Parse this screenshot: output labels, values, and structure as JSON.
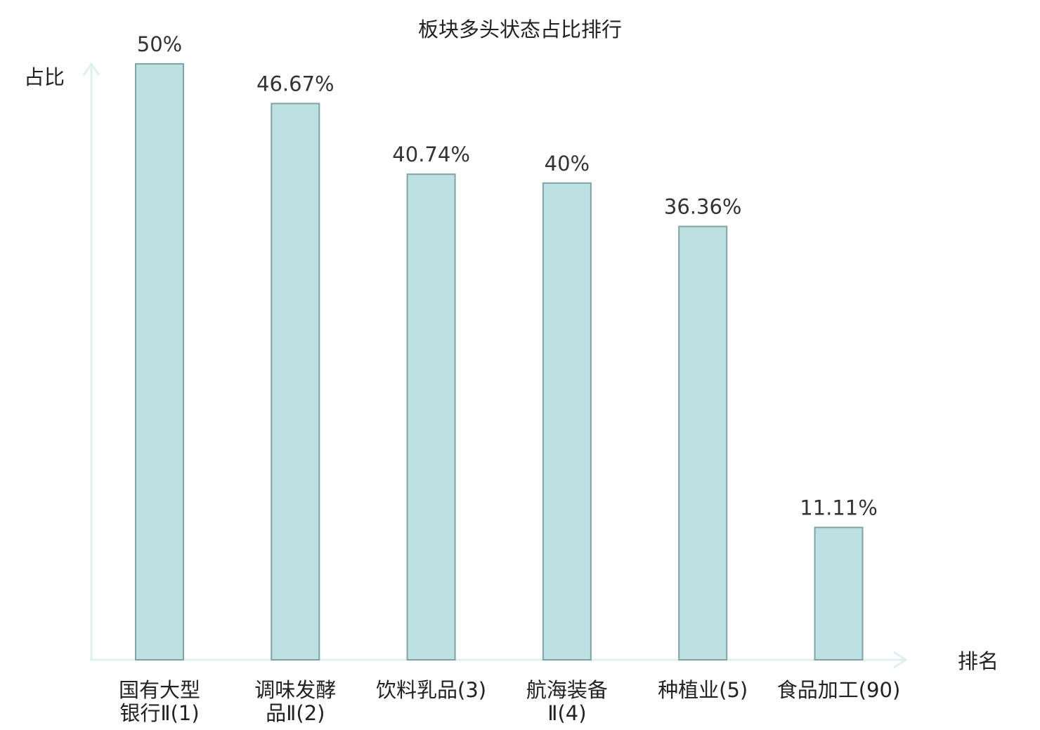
{
  "chart_data": {
    "type": "bar",
    "title": "板块多头状态占比排行",
    "ylabel": "占比",
    "xlabel": "排名",
    "ylim": [
      0,
      50
    ],
    "grid": false,
    "categories": [
      [
        "国有大型",
        "银行Ⅱ(1)"
      ],
      [
        "调味发酵",
        "品Ⅱ(2)"
      ],
      [
        "饮料乳品(3)"
      ],
      [
        "航海装备",
        "Ⅱ(4)"
      ],
      [
        "种植业(5)"
      ],
      [
        "食品加工(90)"
      ]
    ],
    "values": [
      50,
      46.67,
      40.74,
      40,
      36.36,
      11.11
    ],
    "value_labels": [
      "50%",
      "46.67%",
      "40.74%",
      "40%",
      "36.36%",
      "11.11%"
    ],
    "highlight_index": 5,
    "colors": {
      "bar_fill": "#bde0e3",
      "bar_stroke": "#7fa3a6",
      "axis": "#dff0ee",
      "highlight_text": "#e8191b",
      "text": "#222222"
    }
  }
}
